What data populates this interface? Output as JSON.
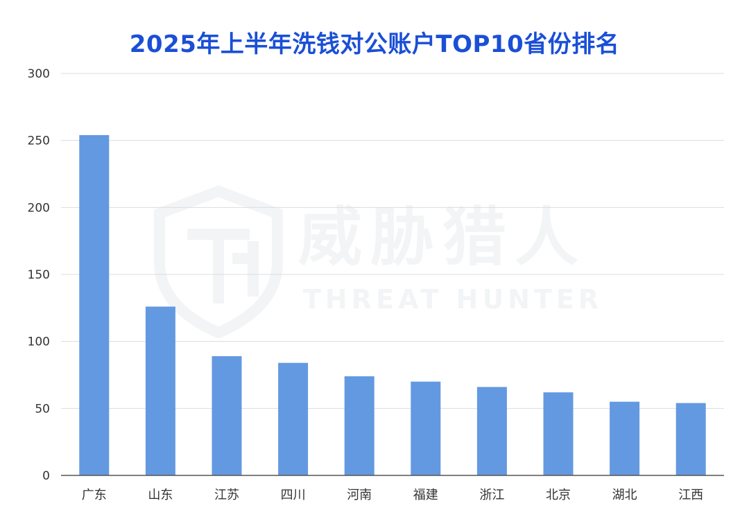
{
  "title": "2025年上半年洗钱对公账户TOP10省份排名",
  "watermark": {
    "cn": "威胁猎人",
    "en": "THREAT HUNTER"
  },
  "colors": {
    "bar": "#6399e0",
    "title": "#1a4fd6",
    "grid": "#dcdcdc",
    "axis": "#555555"
  },
  "chart_data": {
    "type": "bar",
    "title": "2025年上半年洗钱对公账户TOP10省份排名",
    "xlabel": "",
    "ylabel": "",
    "categories": [
      "广东",
      "山东",
      "江苏",
      "四川",
      "河南",
      "福建",
      "浙江",
      "北京",
      "湖北",
      "江西"
    ],
    "values": [
      254,
      126,
      89,
      84,
      74,
      70,
      66,
      62,
      55,
      54
    ],
    "ylim": [
      0,
      300
    ],
    "yticks": [
      "0",
      "50",
      "100",
      "150",
      "200",
      "250",
      "300"
    ],
    "grid": true,
    "legend": "none"
  }
}
